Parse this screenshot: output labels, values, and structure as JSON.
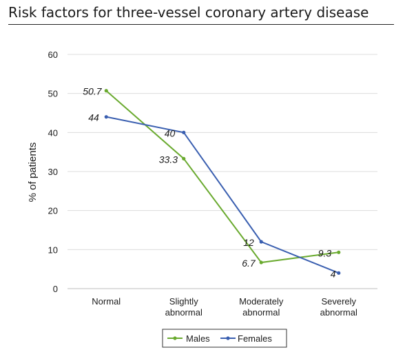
{
  "chart_data": {
    "type": "line",
    "title": "Risk factors for three-vessel coronary artery disease",
    "ylabel": "% of patients",
    "xlabel": "",
    "categories": [
      [
        "Normal"
      ],
      [
        "Slightly",
        "abnormal"
      ],
      [
        "Moderately",
        "abnormal"
      ],
      [
        "Severely",
        "abnormal"
      ]
    ],
    "ylim": [
      0,
      60
    ],
    "yticks": [
      0,
      10,
      20,
      30,
      40,
      50,
      60
    ],
    "grid": true,
    "legend_position": "bottom",
    "series": [
      {
        "name": "Males",
        "color": "#6aaa2f",
        "values": [
          50.7,
          33.3,
          6.7,
          9.3
        ],
        "labels": [
          "50.7",
          "33.3",
          "6.7",
          "9.3"
        ]
      },
      {
        "name": "Females",
        "color": "#3a5fb0",
        "values": [
          44,
          40,
          12,
          4
        ],
        "labels": [
          "44",
          "40",
          "12",
          "4"
        ]
      }
    ]
  }
}
